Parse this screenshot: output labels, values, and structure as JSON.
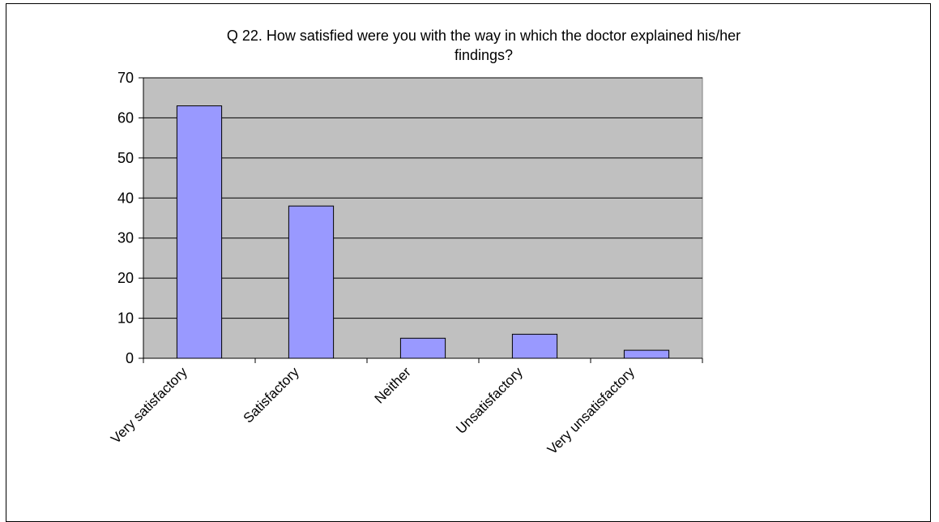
{
  "chart_data": {
    "type": "bar",
    "title_lines": [
      "Q 22. How satisfied were you with the way in which the doctor explained his/her",
      "findings?"
    ],
    "categories": [
      "Very satisfactory",
      "Satisfactory",
      "Neither",
      "Unsatisfactory",
      "Very unsatisfactory"
    ],
    "values": [
      63,
      38,
      5,
      6,
      2
    ],
    "xlabel": "",
    "ylabel": "",
    "ylim": [
      0,
      70
    ],
    "yticks": [
      "0",
      "10",
      "20",
      "30",
      "40",
      "50",
      "60",
      "70"
    ],
    "grid": true,
    "legend": "none",
    "colors": {
      "bar_fill": "#9999ff",
      "bar_stroke": "#000000",
      "plot_background": "#c0c0c0",
      "gridline": "#000000"
    }
  }
}
